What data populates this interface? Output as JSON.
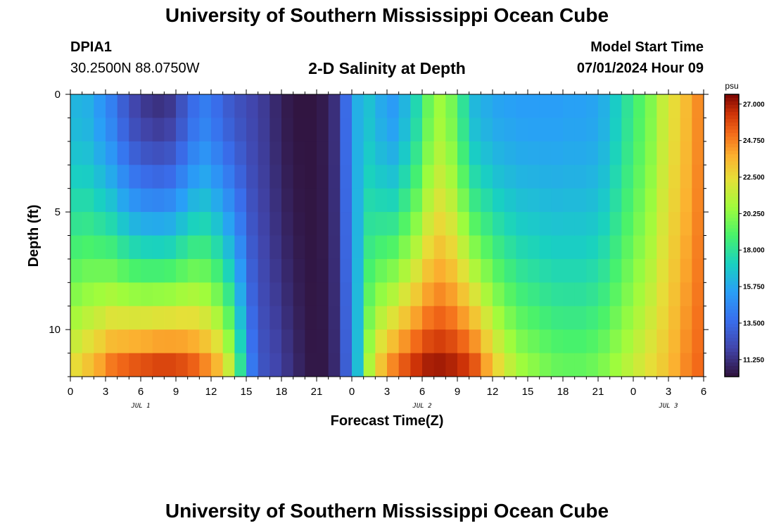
{
  "page": {
    "title": "University of Southern Mississippi Ocean Cube",
    "footer_title": "University of Southern Mississippi Ocean Cube",
    "station_name": "DPIA1",
    "station_coords": "30.2500N  88.0750W",
    "chart_title": "2-D Salinity at Depth",
    "model_start_label": "Model Start Time",
    "model_start_value": "07/01/2024 Hour 09"
  },
  "chart_data": {
    "type": "heatmap",
    "title": "2-D Salinity at Depth",
    "xlabel": "Forecast Time(Z)",
    "ylabel": "Depth (ft)",
    "x_tick_labels": [
      "0",
      "3",
      "6",
      "9",
      "12",
      "15",
      "18",
      "21",
      "0",
      "3",
      "6",
      "9",
      "12",
      "15",
      "18",
      "21",
      "0",
      "3",
      "6"
    ],
    "x_date_labels": [
      {
        "label": "JUL 1",
        "at_hour": 6
      },
      {
        "label": "JUL 2",
        "at_hour": 30
      },
      {
        "label": "JUL 3",
        "at_hour": 51
      }
    ],
    "x_range_hours": [
      0,
      54
    ],
    "y_ticks": [
      0,
      5,
      10
    ],
    "y_range": [
      0,
      12
    ],
    "colorbar": {
      "unit": "psu",
      "tick_labels": [
        "27.000",
        "24.750",
        "22.500",
        "20.250",
        "18.000",
        "15.750",
        "13.500",
        "11.250"
      ],
      "range": [
        10.2,
        27.6
      ]
    },
    "depth_levels": [
      0.5,
      1.5,
      2.5,
      3.5,
      4.5,
      5.5,
      6.5,
      7.5,
      8.5,
      9.5,
      10.5,
      11.5
    ],
    "hours": [
      0,
      1,
      2,
      3,
      4,
      5,
      6,
      7,
      8,
      9,
      10,
      11,
      12,
      13,
      14,
      15,
      16,
      17,
      18,
      19,
      20,
      21,
      22,
      23,
      24,
      25,
      26,
      27,
      28,
      29,
      30,
      31,
      32,
      33,
      34,
      35,
      36,
      37,
      38,
      39,
      40,
      41,
      42,
      43,
      44,
      45,
      46,
      47,
      48,
      49,
      50,
      51,
      52,
      53
    ],
    "salinity_bands": [
      {
        "hours": [
          0,
          1,
          2,
          3,
          4,
          5,
          6,
          7,
          8,
          9,
          10,
          11,
          12,
          13,
          14,
          15,
          16,
          17,
          18,
          19,
          20,
          21,
          22,
          23,
          24,
          25,
          26,
          27,
          28,
          29,
          30,
          31,
          32,
          33,
          34,
          35,
          36,
          37,
          38,
          39,
          40,
          41,
          42,
          43,
          44,
          45,
          46,
          47,
          48,
          49,
          50,
          51,
          52,
          53
        ],
        "surface": [
          16.2,
          16.0,
          15.2,
          14.3,
          13.0,
          12.0,
          11.5,
          11.3,
          11.5,
          12.5,
          13.6,
          14.2,
          13.6,
          12.9,
          12.4,
          12.0,
          11.6,
          11.0,
          10.5,
          10.3,
          10.3,
          10.5,
          11.2,
          13.5,
          16.0,
          16.6,
          15.8,
          15.3,
          16.2,
          17.5,
          19.5,
          20.6,
          19.8,
          18.0,
          16.3,
          15.9,
          15.6,
          15.5,
          15.4,
          15.4,
          15.4,
          15.4,
          15.5,
          15.5,
          15.6,
          16.0,
          17.0,
          18.0,
          19.0,
          20.0,
          21.5,
          22.5,
          23.5,
          24.5
        ],
        "bottom": [
          22.5,
          23.2,
          24.0,
          24.9,
          25.3,
          25.6,
          25.8,
          26.0,
          26.0,
          25.8,
          25.4,
          24.6,
          23.6,
          21.6,
          18.0,
          14.0,
          12.5,
          12.0,
          11.4,
          10.8,
          10.4,
          10.4,
          11.0,
          13.0,
          16.5,
          21.0,
          23.2,
          24.6,
          25.6,
          26.4,
          26.9,
          27.0,
          26.8,
          26.4,
          25.6,
          24.0,
          22.5,
          21.4,
          20.6,
          20.2,
          19.8,
          19.5,
          19.4,
          19.4,
          19.6,
          20.0,
          20.6,
          21.2,
          21.8,
          22.4,
          23.0,
          23.8,
          24.6,
          25.2
        ]
      }
    ]
  }
}
